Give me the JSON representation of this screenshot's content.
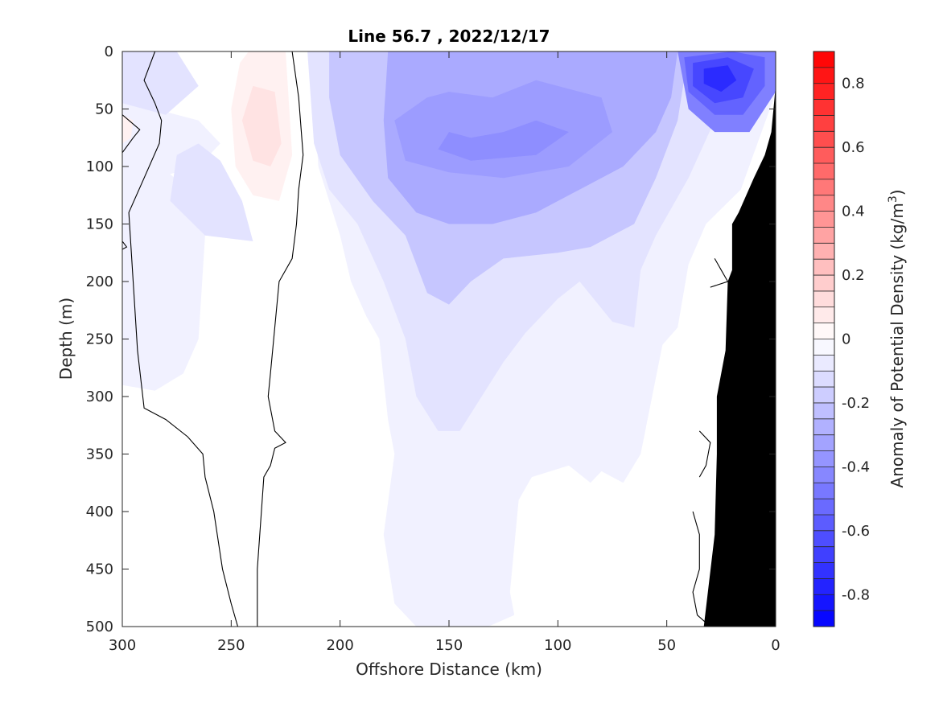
{
  "chart_data": {
    "type": "heatmap",
    "subtype": "filled-contour-section",
    "title": "Line 56.7 , 2022/12/17",
    "xlabel": "Offshore Distance (km)",
    "ylabel": "Depth (m)",
    "xlim": [
      300,
      0
    ],
    "ylim": [
      500,
      0
    ],
    "x_reversed": true,
    "y_reversed": true,
    "x_ticks": [
      "300",
      "250",
      "200",
      "150",
      "100",
      "50",
      "0"
    ],
    "y_ticks": [
      "0",
      "50",
      "100",
      "150",
      "200",
      "250",
      "300",
      "350",
      "400",
      "450",
      "500"
    ],
    "colorbar": {
      "label": "Anomaly of Potential Density (kg/m",
      "label_superscript": "3",
      "label_suffix": ")",
      "range": [
        -0.9,
        0.9
      ],
      "ticks": [
        "-0.8",
        "-0.6",
        "-0.4",
        "-0.2",
        "0",
        "0.2",
        "0.4",
        "0.6",
        "0.8"
      ],
      "tick_values": [
        -0.8,
        -0.6,
        -0.4,
        -0.2,
        0,
        0.2,
        0.4,
        0.6,
        0.8
      ],
      "levels": 36,
      "negative_color": "#0000ff",
      "positive_color": "#ff0000",
      "zero_color": "#ffffff"
    },
    "grid": false,
    "bathymetry_color": "#000000",
    "regions": [
      {
        "value": -0.05,
        "points": [
          [
            300,
            160
          ],
          [
            300,
            290
          ],
          [
            285,
            295
          ],
          [
            272,
            280
          ],
          [
            265,
            250
          ],
          [
            262,
            160
          ],
          [
            270,
            120
          ],
          [
            285,
            95
          ],
          [
            300,
            85
          ]
        ]
      },
      {
        "value": -0.05,
        "points": [
          [
            300,
            0
          ],
          [
            290,
            0
          ],
          [
            286,
            5
          ],
          [
            290,
            30
          ],
          [
            285,
            50
          ],
          [
            265,
            60
          ],
          [
            255,
            80
          ],
          [
            265,
            100
          ],
          [
            285,
            110
          ],
          [
            300,
            105
          ]
        ]
      },
      {
        "value": -0.05,
        "points": [
          [
            215,
            0
          ],
          [
            0,
            0
          ],
          [
            0,
            36
          ],
          [
            16,
            120
          ],
          [
            32,
            150
          ],
          [
            40,
            185
          ],
          [
            45,
            240
          ],
          [
            52,
            255
          ],
          [
            62,
            350
          ],
          [
            70,
            375
          ],
          [
            75,
            370
          ],
          [
            80,
            365
          ],
          [
            85,
            375
          ],
          [
            95,
            360
          ],
          [
            112,
            370
          ],
          [
            118,
            390
          ],
          [
            122,
            470
          ],
          [
            120,
            490
          ],
          [
            132,
            500
          ],
          [
            165,
            500
          ],
          [
            175,
            480
          ],
          [
            180,
            420
          ],
          [
            175,
            350
          ],
          [
            178,
            320
          ],
          [
            182,
            250
          ],
          [
            188,
            230
          ],
          [
            195,
            200
          ],
          [
            200,
            160
          ],
          [
            210,
            100
          ],
          [
            212,
            40
          ]
        ]
      },
      {
        "value": -0.1,
        "points": [
          [
            300,
            0
          ],
          [
            275,
            0
          ],
          [
            265,
            30
          ],
          [
            280,
            55
          ],
          [
            300,
            45
          ]
        ]
      },
      {
        "value": -0.1,
        "points": [
          [
            275,
            90
          ],
          [
            265,
            80
          ],
          [
            255,
            95
          ],
          [
            245,
            130
          ],
          [
            240,
            165
          ],
          [
            262,
            160
          ],
          [
            278,
            130
          ]
        ]
      },
      {
        "value": -0.1,
        "points": [
          [
            215,
            0
          ],
          [
            26,
            0
          ],
          [
            28,
            60
          ],
          [
            40,
            110
          ],
          [
            55,
            160
          ],
          [
            62,
            190
          ],
          [
            65,
            240
          ],
          [
            75,
            235
          ],
          [
            90,
            200
          ],
          [
            100,
            215
          ],
          [
            115,
            245
          ],
          [
            125,
            270
          ],
          [
            135,
            300
          ],
          [
            145,
            330
          ],
          [
            155,
            330
          ],
          [
            165,
            300
          ],
          [
            170,
            250
          ],
          [
            180,
            200
          ],
          [
            192,
            150
          ],
          [
            205,
            120
          ],
          [
            212,
            80
          ]
        ]
      },
      {
        "value": -0.2,
        "points": [
          [
            205,
            0
          ],
          [
            40,
            0
          ],
          [
            45,
            60
          ],
          [
            55,
            110
          ],
          [
            65,
            150
          ],
          [
            85,
            170
          ],
          [
            100,
            175
          ],
          [
            125,
            180
          ],
          [
            140,
            200
          ],
          [
            150,
            220
          ],
          [
            160,
            210
          ],
          [
            170,
            160
          ],
          [
            185,
            130
          ],
          [
            200,
            90
          ],
          [
            205,
            40
          ]
        ]
      },
      {
        "value": -0.3,
        "points": [
          [
            178,
            0
          ],
          [
            45,
            0
          ],
          [
            48,
            40
          ],
          [
            55,
            70
          ],
          [
            70,
            100
          ],
          [
            90,
            120
          ],
          [
            110,
            140
          ],
          [
            130,
            150
          ],
          [
            150,
            150
          ],
          [
            165,
            140
          ],
          [
            178,
            110
          ],
          [
            180,
            60
          ]
        ]
      },
      {
        "value": -0.35,
        "points": [
          [
            160,
            40
          ],
          [
            150,
            35
          ],
          [
            130,
            40
          ],
          [
            110,
            25
          ],
          [
            80,
            40
          ],
          [
            75,
            70
          ],
          [
            95,
            100
          ],
          [
            125,
            110
          ],
          [
            150,
            105
          ],
          [
            170,
            95
          ],
          [
            175,
            60
          ]
        ]
      },
      {
        "value": -0.4,
        "points": [
          [
            150,
            70
          ],
          [
            140,
            75
          ],
          [
            125,
            70
          ],
          [
            110,
            60
          ],
          [
            95,
            70
          ],
          [
            110,
            90
          ],
          [
            140,
            95
          ],
          [
            155,
            85
          ]
        ]
      },
      {
        "value": -0.45,
        "points": [
          [
            45,
            0
          ],
          [
            0,
            0
          ],
          [
            0,
            35
          ],
          [
            12,
            70
          ],
          [
            28,
            70
          ],
          [
            40,
            50
          ]
        ]
      },
      {
        "value": -0.55,
        "points": [
          [
            42,
            5
          ],
          [
            20,
            0
          ],
          [
            5,
            5
          ],
          [
            5,
            30
          ],
          [
            15,
            55
          ],
          [
            28,
            55
          ],
          [
            40,
            35
          ]
        ]
      },
      {
        "value": -0.65,
        "points": [
          [
            38,
            10
          ],
          [
            22,
            5
          ],
          [
            10,
            15
          ],
          [
            15,
            40
          ],
          [
            28,
            45
          ],
          [
            38,
            30
          ]
        ]
      },
      {
        "value": -0.75,
        "points": [
          [
            33,
            15
          ],
          [
            22,
            12
          ],
          [
            18,
            25
          ],
          [
            25,
            35
          ],
          [
            33,
            28
          ]
        ]
      },
      {
        "value": 0.05,
        "points": [
          [
            242,
            0
          ],
          [
            225,
            0
          ],
          [
            224,
            30
          ],
          [
            222,
            90
          ],
          [
            228,
            130
          ],
          [
            240,
            125
          ],
          [
            248,
            100
          ],
          [
            250,
            50
          ],
          [
            246,
            10
          ]
        ]
      },
      {
        "value": 0.05,
        "points": [
          [
            300,
            55
          ],
          [
            295,
            60
          ],
          [
            296,
            75
          ],
          [
            300,
            80
          ]
        ]
      },
      {
        "value": 0.1,
        "points": [
          [
            240,
            30
          ],
          [
            230,
            35
          ],
          [
            227,
            80
          ],
          [
            232,
            100
          ],
          [
            240,
            95
          ],
          [
            245,
            60
          ]
        ]
      }
    ],
    "zero_contours": [
      [
        [
          285,
          0
        ],
        [
          290,
          25
        ],
        [
          285,
          45
        ],
        [
          282,
          60
        ],
        [
          283,
          80
        ],
        [
          290,
          110
        ],
        [
          297,
          140
        ],
        [
          295,
          200
        ],
        [
          293,
          260
        ],
        [
          290,
          310
        ],
        [
          280,
          320
        ],
        [
          270,
          335
        ],
        [
          263,
          350
        ],
        [
          262,
          370
        ],
        [
          258,
          400
        ],
        [
          254,
          450
        ],
        [
          250,
          480
        ],
        [
          247,
          500
        ]
      ],
      [
        [
          222,
          0
        ],
        [
          219,
          40
        ],
        [
          217,
          90
        ],
        [
          219,
          120
        ],
        [
          220,
          150
        ],
        [
          222,
          180
        ],
        [
          228,
          200
        ],
        [
          230,
          240
        ],
        [
          232,
          280
        ],
        [
          233,
          300
        ],
        [
          230,
          330
        ],
        [
          225,
          340
        ],
        [
          230,
          345
        ],
        [
          232,
          360
        ],
        [
          235,
          370
        ],
        [
          238,
          450
        ],
        [
          238,
          500
        ]
      ],
      [
        [
          300,
          55
        ],
        [
          292,
          68
        ],
        [
          295,
          75
        ],
        [
          300,
          88
        ]
      ],
      [
        [
          300,
          165
        ],
        [
          298,
          170
        ],
        [
          300,
          172
        ]
      ],
      [
        [
          28,
          180
        ],
        [
          25,
          190
        ],
        [
          22,
          200
        ],
        [
          30,
          205
        ]
      ],
      [
        [
          35,
          330
        ],
        [
          30,
          340
        ],
        [
          32,
          360
        ],
        [
          35,
          370
        ]
      ],
      [
        [
          38,
          400
        ],
        [
          35,
          420
        ],
        [
          35,
          450
        ],
        [
          38,
          470
        ],
        [
          36,
          490
        ],
        [
          30,
          500
        ]
      ]
    ],
    "bathymetry": [
      [
        0,
        500
      ],
      [
        33,
        500
      ],
      [
        28,
        420
      ],
      [
        27,
        350
      ],
      [
        27,
        300
      ],
      [
        23,
        260
      ],
      [
        22,
        200
      ],
      [
        20,
        190
      ],
      [
        20,
        150
      ],
      [
        17,
        140
      ],
      [
        10,
        110
      ],
      [
        5,
        90
      ],
      [
        2,
        70
      ],
      [
        0,
        30
      ]
    ]
  }
}
